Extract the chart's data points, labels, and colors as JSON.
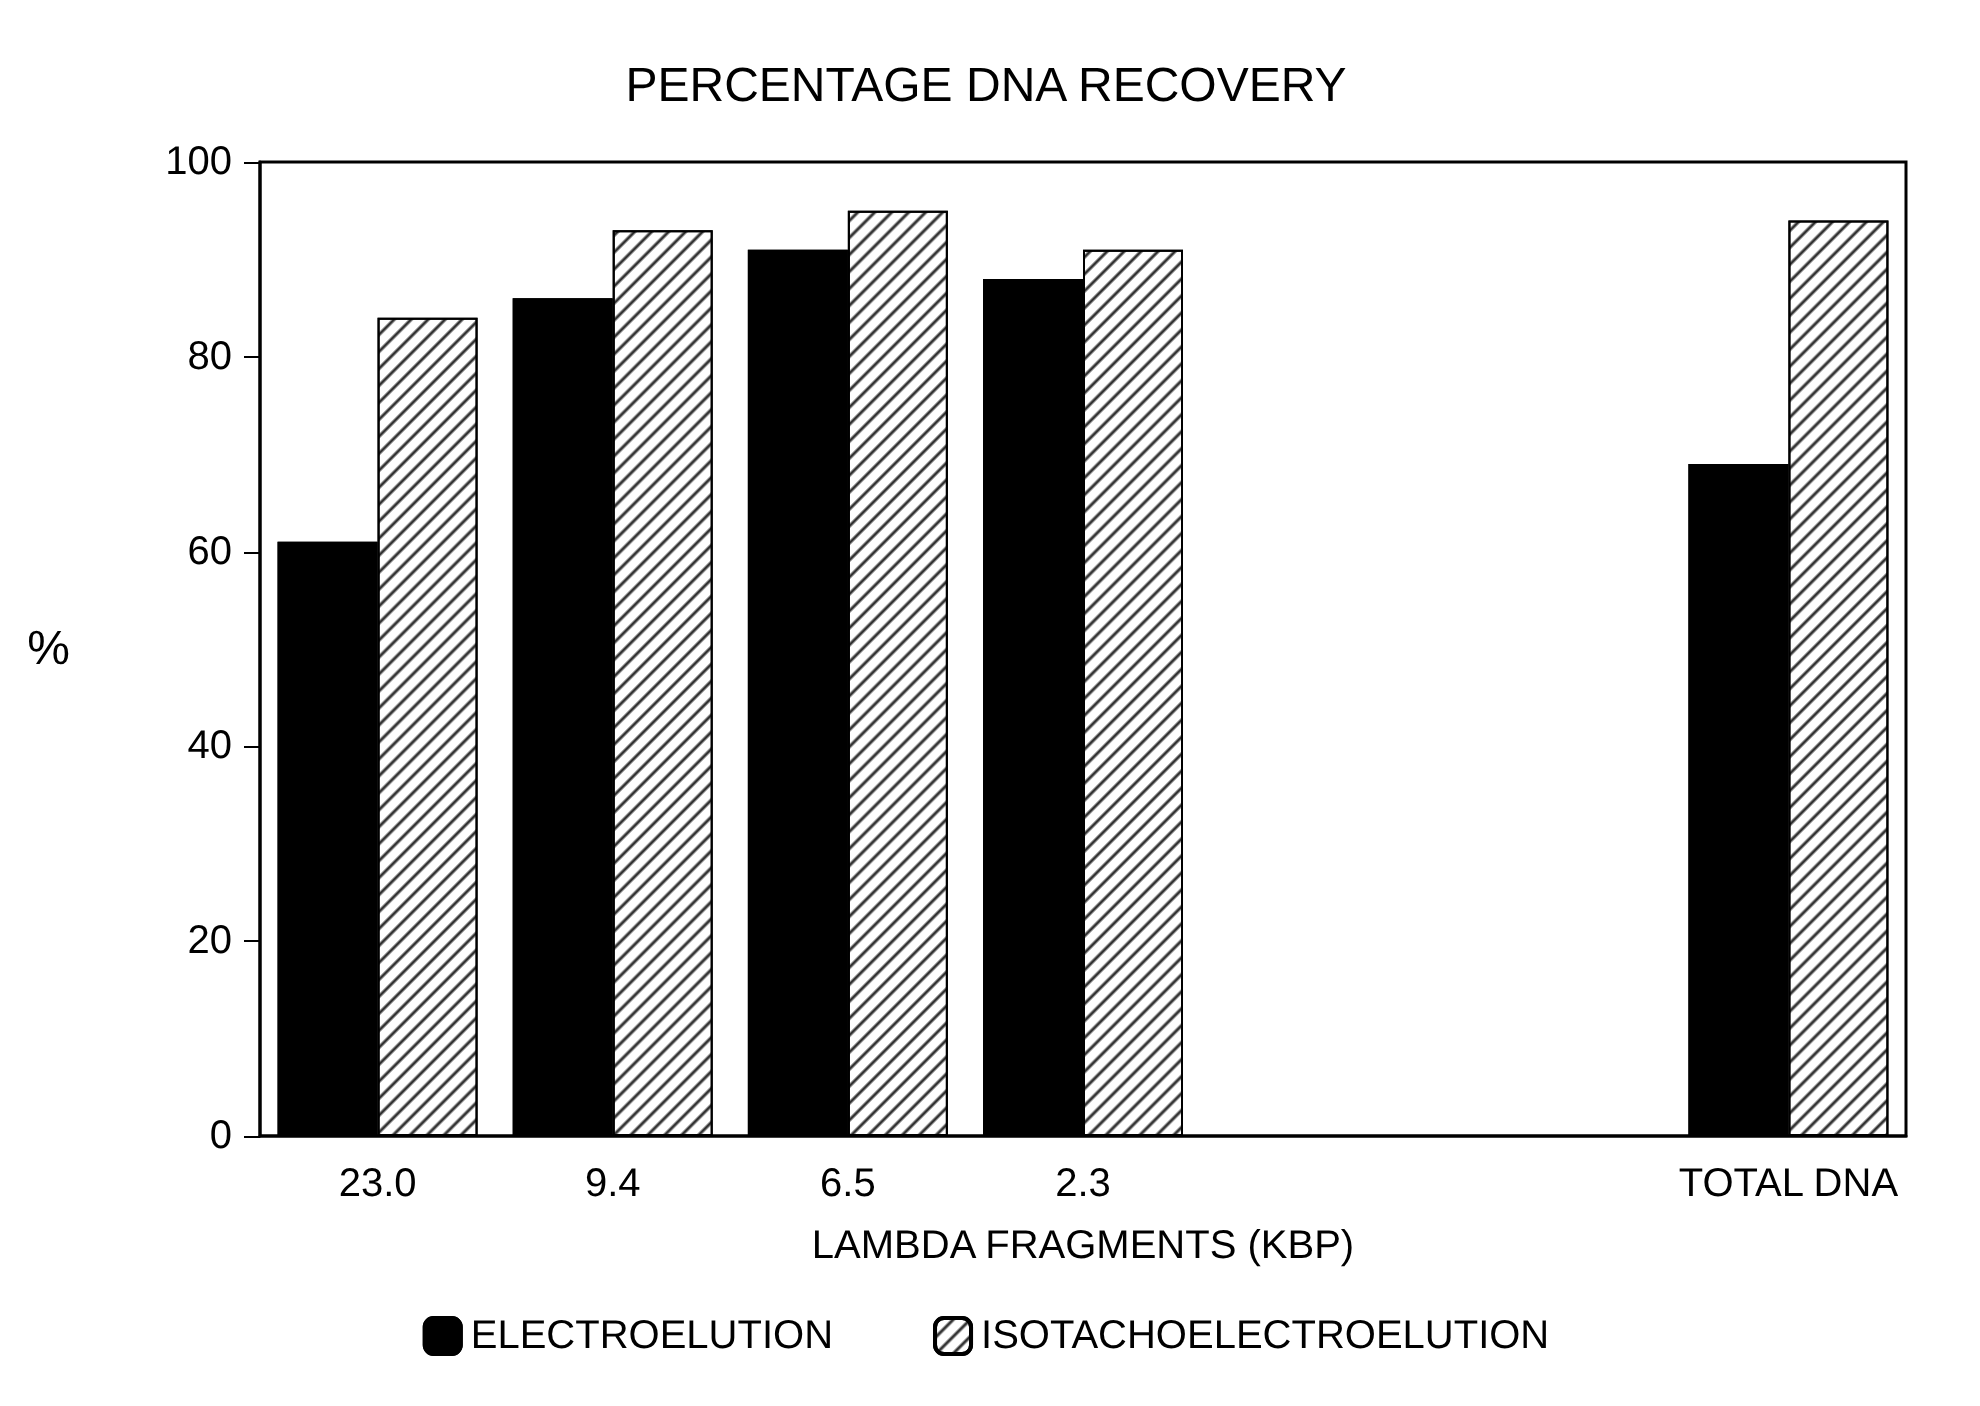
{
  "chart_data": {
    "type": "bar",
    "title": "PERCENTAGE DNA RECOVERY",
    "xlabel": "LAMBDA FRAGMENTS (KBP)",
    "ylabel": "%",
    "categories": [
      "23.0",
      "9.4",
      "6.5",
      "2.3",
      null,
      null,
      "TOTAL DNA"
    ],
    "series": [
      {
        "name": "ELECTROELUTION",
        "color": "#000000",
        "values": [
          61,
          86,
          91,
          88,
          null,
          null,
          69
        ]
      },
      {
        "name": "ISOTACHOELECTROELUTION",
        "color": "#000000",
        "values": [
          84,
          93,
          95,
          91,
          null,
          null,
          94
        ]
      }
    ],
    "ylim": [
      0,
      100
    ],
    "yticks": [
      0,
      20,
      40,
      60,
      80,
      100
    ],
    "grid": false,
    "legend": "bottom"
  }
}
